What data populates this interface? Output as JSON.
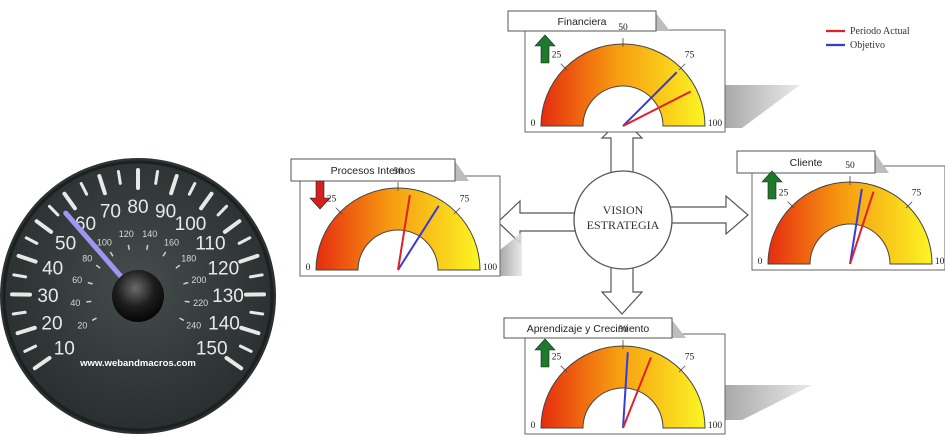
{
  "legend": {
    "items": [
      {
        "label": "Periodo Actual",
        "color": "#e0202a"
      },
      {
        "label": "Objetivo",
        "color": "#3a3ad8"
      }
    ]
  },
  "center": {
    "line1": "VISION",
    "line2": "ESTRATEGIA"
  },
  "speedometer": {
    "outer_labels": [
      "10",
      "20",
      "30",
      "40",
      "50",
      "60",
      "70",
      "80",
      "90",
      "100",
      "110",
      "120",
      "130",
      "140",
      "150"
    ],
    "inner_labels": [
      "20",
      "40",
      "60",
      "80",
      "100",
      "120",
      "140",
      "160",
      "180",
      "200",
      "220",
      "240"
    ],
    "needle_value": 57,
    "brand": "www.webandmacros.com",
    "face_color": "#343a3a"
  },
  "gauge_scale": {
    "labels": [
      "0",
      "25",
      "50",
      "75",
      "100"
    ],
    "min": 0,
    "max": 100
  },
  "panels": [
    {
      "key": "financiera",
      "title": "Financiera",
      "trend": "up",
      "actual": 85,
      "objetivo": 75
    },
    {
      "key": "procesos",
      "title": "Procesos Internos",
      "trend": "down",
      "actual": 55,
      "objetivo": 68
    },
    {
      "key": "cliente",
      "title": "Cliente",
      "trend": "up",
      "actual": 60,
      "objetivo": 55
    },
    {
      "key": "aprendizaje",
      "title": "Aprendizaje y Crecimiento",
      "trend": "up",
      "actual": 62,
      "objetivo": 52
    }
  ],
  "colors": {
    "trend_up": "#1d7a2a",
    "trend_down": "#d42020",
    "gauge_red": "#e83010",
    "gauge_yellow": "#f8f020"
  }
}
